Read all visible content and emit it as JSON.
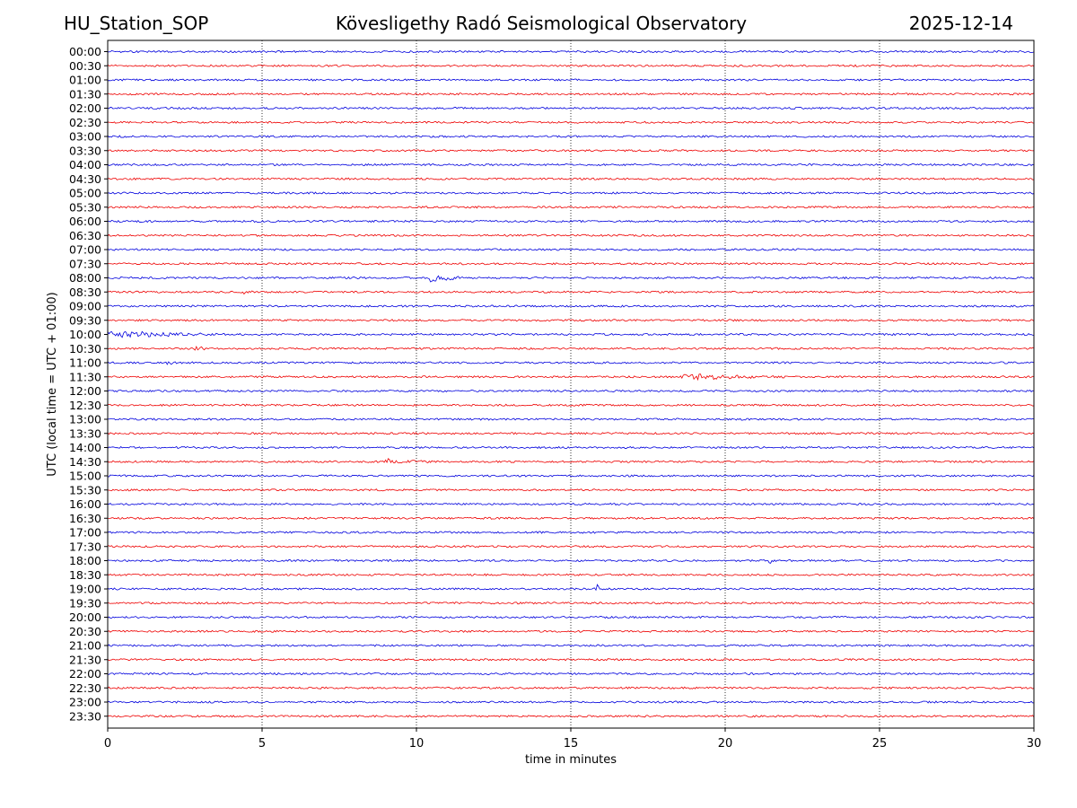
{
  "header": {
    "station": "HU_Station_SOP",
    "observatory": "Kövesligethy Radó Seismological Observatory",
    "date": "2025-12-14"
  },
  "chart_data": {
    "type": "line",
    "title": "Kövesligethy Radó Seismological Observatory",
    "xlabel": "time in minutes",
    "ylabel": "UTC (local time = UTC + 01:00)",
    "xlim": [
      0,
      30
    ],
    "xticks": [
      0,
      5,
      10,
      15,
      20,
      25,
      30
    ],
    "grid": "vertical dotted lines at each x tick",
    "series_colors": [
      "#0000dd",
      "#ee0000"
    ],
    "row_labels": [
      "00:00",
      "00:30",
      "01:00",
      "01:30",
      "02:00",
      "02:30",
      "03:00",
      "03:30",
      "04:00",
      "04:30",
      "05:00",
      "05:30",
      "06:00",
      "06:30",
      "07:00",
      "07:30",
      "08:00",
      "08:30",
      "09:00",
      "09:30",
      "10:00",
      "10:30",
      "11:00",
      "11:30",
      "12:00",
      "12:30",
      "13:00",
      "13:30",
      "14:00",
      "14:30",
      "15:00",
      "15:30",
      "16:00",
      "16:30",
      "17:00",
      "17:30",
      "18:00",
      "18:30",
      "19:00",
      "19:30",
      "20:00",
      "20:30",
      "21:00",
      "21:30",
      "22:00",
      "22:30",
      "23:00",
      "23:30"
    ],
    "events": [
      {
        "row": "08:00",
        "start_min": 10.4,
        "end_min": 11.6,
        "amplitude": 6
      },
      {
        "row": "08:30",
        "start_min": 4.4,
        "end_min": 4.9,
        "amplitude": 2.5
      },
      {
        "row": "10:00",
        "start_min": 0,
        "end_min": 4.6,
        "amplitude": 3.5
      },
      {
        "row": "10:30",
        "start_min": 2.8,
        "end_min": 3.3,
        "amplitude": 3
      },
      {
        "row": "11:00",
        "start_min": 1.9,
        "end_min": 2.3,
        "amplitude": 2.5
      },
      {
        "row": "11:30",
        "start_min": 18.6,
        "end_min": 22.0,
        "amplitude": 3.5
      },
      {
        "row": "14:30",
        "start_min": 9.0,
        "end_min": 9.2,
        "amplitude": 8
      },
      {
        "row": "14:30",
        "start_min": 9.2,
        "end_min": 11.5,
        "amplitude": 2
      },
      {
        "row": "18:00",
        "start_min": 21.4,
        "end_min": 21.8,
        "amplitude": 3
      },
      {
        "row": "19:00",
        "start_min": 15.8,
        "end_min": 16.0,
        "amplitude": 6
      }
    ]
  }
}
